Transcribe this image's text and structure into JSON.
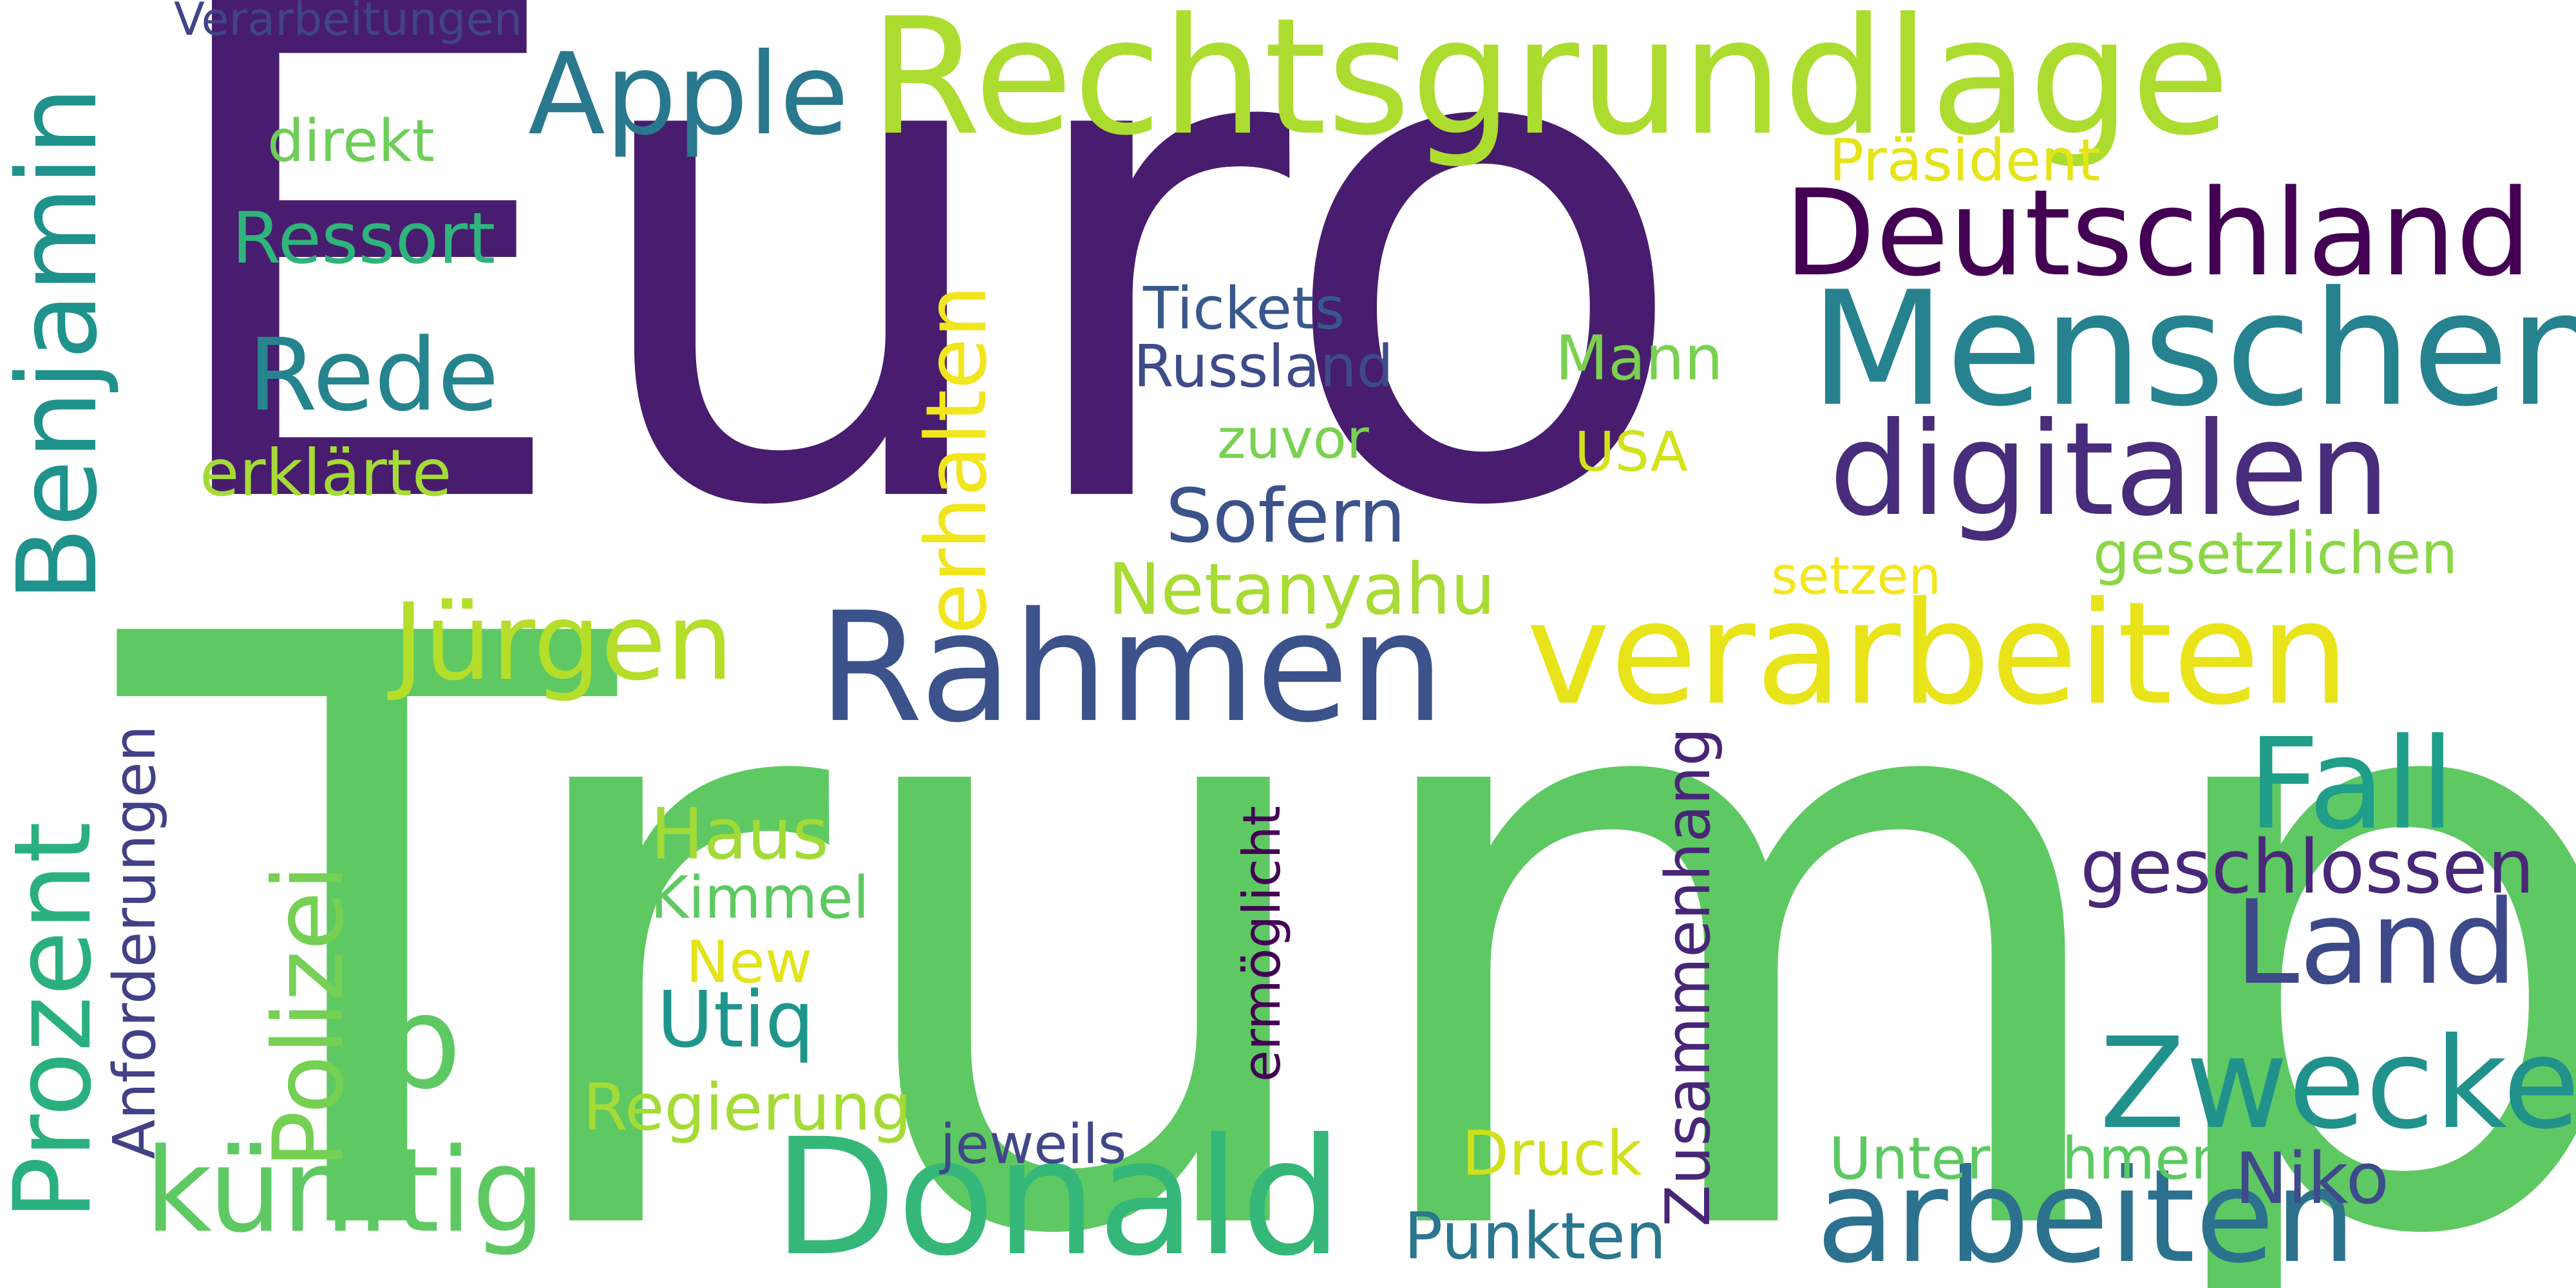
{
  "word_cloud": {
    "background_color": "#ffffff",
    "words": [
      {
        "text": "Euro",
        "color": "#481c6e",
        "orientation": "horizontal"
      },
      {
        "text": "Trump",
        "color": "#5ec962",
        "orientation": "horizontal"
      },
      {
        "text": "Rechtsgrundlage",
        "color": "#addc30",
        "orientation": "horizontal"
      },
      {
        "text": "Deutschland",
        "color": "#440154",
        "orientation": "horizontal"
      },
      {
        "text": "Menschen",
        "color": "#26828e",
        "orientation": "horizontal"
      },
      {
        "text": "digitalen",
        "color": "#472d7b",
        "orientation": "horizontal"
      },
      {
        "text": "verarbeiten",
        "color": "#e8e419",
        "orientation": "horizontal"
      },
      {
        "text": "Rahmen",
        "color": "#3b528b",
        "orientation": "horizontal"
      },
      {
        "text": "Donald",
        "color": "#35b779",
        "orientation": "horizontal"
      },
      {
        "text": "arbeiten",
        "color": "#2c728e",
        "orientation": "horizontal"
      },
      {
        "text": "Zwecke",
        "color": "#21918c",
        "orientation": "horizontal"
      },
      {
        "text": "Fall",
        "color": "#1f9e89",
        "orientation": "horizontal"
      },
      {
        "text": "Land",
        "color": "#3e4989",
        "orientation": "horizontal"
      },
      {
        "text": "geschlossen",
        "color": "#482878",
        "orientation": "horizontal"
      },
      {
        "text": "Jürgen",
        "color": "#b5de2b",
        "orientation": "horizontal"
      },
      {
        "text": "Apple",
        "color": "#2a788e",
        "orientation": "horizontal"
      },
      {
        "text": "Rede",
        "color": "#25848e",
        "orientation": "horizontal"
      },
      {
        "text": "b",
        "color": "#5ec962",
        "orientation": "horizontal"
      },
      {
        "text": "künftig",
        "color": "#5ec962",
        "orientation": "horizontal"
      },
      {
        "text": "Ressort",
        "color": "#2fb47c",
        "orientation": "horizontal"
      },
      {
        "text": "erklärte",
        "color": "#a5db36",
        "orientation": "horizontal"
      },
      {
        "text": "direkt",
        "color": "#6ece58",
        "orientation": "horizontal"
      },
      {
        "text": "Verarbeitungen",
        "color": "#414487",
        "orientation": "horizontal"
      },
      {
        "text": "Präsident",
        "color": "#e5e419",
        "orientation": "horizontal"
      },
      {
        "text": "Tickets",
        "color": "#38588c",
        "orientation": "horizontal"
      },
      {
        "text": "Russland",
        "color": "#3e4a89",
        "orientation": "horizontal"
      },
      {
        "text": "Mann",
        "color": "#7ad151",
        "orientation": "horizontal"
      },
      {
        "text": "zuvor",
        "color": "#7ad151",
        "orientation": "horizontal"
      },
      {
        "text": "USA",
        "color": "#d2e21b",
        "orientation": "horizontal"
      },
      {
        "text": "Sofern",
        "color": "#3b528b",
        "orientation": "horizontal"
      },
      {
        "text": "Netanyahu",
        "color": "#a8db34",
        "orientation": "horizontal"
      },
      {
        "text": "setzen",
        "color": "#f4e61e",
        "orientation": "horizontal"
      },
      {
        "text": "gesetzlichen",
        "color": "#8bd646",
        "orientation": "horizontal"
      },
      {
        "text": "Haus",
        "color": "#a2da37",
        "orientation": "horizontal"
      },
      {
        "text": "Kimmel",
        "color": "#5ec962",
        "orientation": "horizontal"
      },
      {
        "text": "New",
        "color": "#e2e418",
        "orientation": "horizontal"
      },
      {
        "text": "Utiq",
        "color": "#1f968b",
        "orientation": "horizontal"
      },
      {
        "text": "Regierung",
        "color": "#a5db36",
        "orientation": "horizontal"
      },
      {
        "text": "jeweils",
        "color": "#3f4788",
        "orientation": "horizontal"
      },
      {
        "text": "Punkten",
        "color": "#2a778e",
        "orientation": "horizontal"
      },
      {
        "text": "Druck",
        "color": "#d0e11c",
        "orientation": "horizontal"
      },
      {
        "text": "Unternehmen",
        "color": "#5ec962",
        "orientation": "horizontal"
      },
      {
        "text": "Niko",
        "color": "#3e4a89",
        "orientation": "horizontal"
      },
      {
        "text": "Benjamin",
        "color": "#20928c",
        "orientation": "vertical"
      },
      {
        "text": "erhalten",
        "color": "#f1e51d",
        "orientation": "vertical"
      },
      {
        "text": "Prozent",
        "color": "#2ab07f",
        "orientation": "vertical"
      },
      {
        "text": "Polizei",
        "color": "#75d054",
        "orientation": "vertical"
      },
      {
        "text": "Anforderungen",
        "color": "#424086",
        "orientation": "vertical"
      },
      {
        "text": "ermöglicht",
        "color": "#440154",
        "orientation": "vertical"
      },
      {
        "text": "Zusammenhang",
        "color": "#482677",
        "orientation": "vertical"
      }
    ]
  }
}
